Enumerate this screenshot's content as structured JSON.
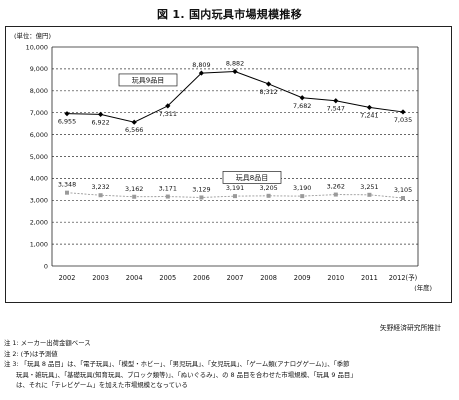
{
  "title": "図 1. 国内玩具市場規模推移",
  "source": "矢野経済研究所推計",
  "notes": [
    "注 1: メーカー出荷金額ベース",
    "注 2: (予)は予測値",
    "注 3: 「玩具 8 品目」は、「電子玩具」、「模型・ホビー」、「男児玩具」、「女児玩具」、「ゲーム類(アナログゲーム)」、「季節",
    "玩具・雑玩具」、「基礎玩具(知育玩具、ブロック類等)」、「ぬいぐるみ」、の 8 品目を合わせた市場規模、「玩具 9 品目」",
    "は、それに「テレビゲーム」を加えた市場規模となっている"
  ],
  "chart_data": {
    "type": "line",
    "unit_label": "(単位：億円)",
    "xlabel": "(年度)",
    "categories": [
      "2002",
      "2003",
      "2004",
      "2005",
      "2006",
      "2007",
      "2008",
      "2009",
      "2010",
      "2011",
      "2012(予)"
    ],
    "ylim": [
      0,
      10000
    ],
    "y_ticks": [
      "0",
      "1,000",
      "2,000",
      "3,000",
      "4,000",
      "5,000",
      "6,000",
      "7,000",
      "8,000",
      "9,000",
      "10,000"
    ],
    "grid": true,
    "series": [
      {
        "name": "玩具9品目",
        "values": [
          6955,
          6922,
          6566,
          7311,
          8809,
          8882,
          8312,
          7682,
          7547,
          7241,
          7035
        ],
        "labels": [
          "6,955",
          "6,922",
          "6,566",
          "7,311",
          "8,809",
          "8,882",
          "8,312",
          "7,682",
          "7,547",
          "7,241",
          "7,035"
        ],
        "color": "#000000",
        "marker": "diamond"
      },
      {
        "name": "玩具8品目",
        "values": [
          3348,
          3232,
          3162,
          3171,
          3129,
          3191,
          3205,
          3190,
          3262,
          3251,
          3105
        ],
        "labels": [
          "3,348",
          "3,232",
          "3,162",
          "3,171",
          "3,129",
          "3,191",
          "3,205",
          "3,190",
          "3,262",
          "3,251",
          "3,105"
        ],
        "color": "#9a9a9a",
        "marker": "square"
      }
    ]
  }
}
